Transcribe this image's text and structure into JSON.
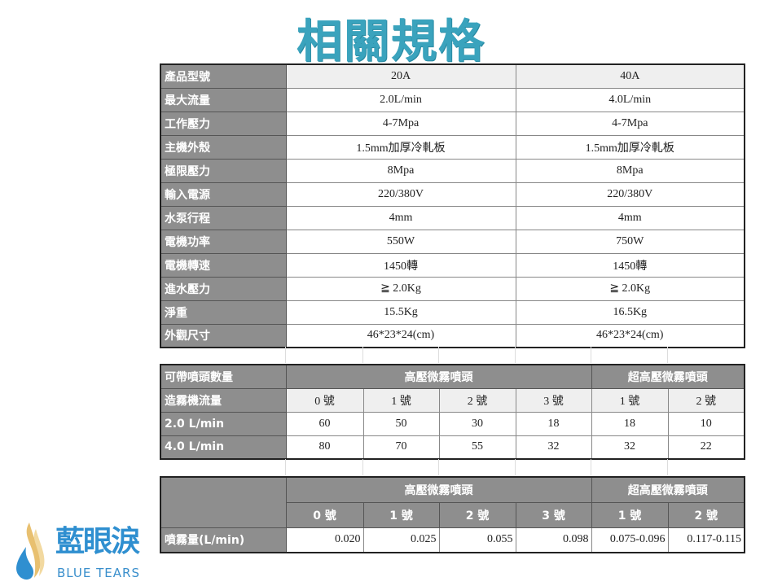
{
  "title": "相關規格",
  "spec_table": {
    "header": {
      "label": "產品型號",
      "values": [
        "20A",
        "40A"
      ]
    },
    "rows": [
      {
        "label": "最大流量",
        "values": [
          "2.0L/min",
          "4.0L/min"
        ]
      },
      {
        "label": "工作壓力",
        "values": [
          "4-7Mpa",
          "4-7Mpa"
        ]
      },
      {
        "label": "主機外殼",
        "values": [
          "1.5mm加厚冷軋板",
          "1.5mm加厚冷軋板"
        ]
      },
      {
        "label": "極限壓力",
        "values": [
          "8Mpa",
          "8Mpa"
        ]
      },
      {
        "label": "輸入電源",
        "values": [
          "220/380V",
          "220/380V"
        ]
      },
      {
        "label": "水泵行程",
        "values": [
          "4mm",
          "4mm"
        ]
      },
      {
        "label": "電機功率",
        "values": [
          "550W",
          "750W"
        ]
      },
      {
        "label": "電機轉速",
        "values": [
          "1450轉",
          "1450轉"
        ]
      },
      {
        "label": "進水壓力",
        "values": [
          "≧ 2.0Kg",
          "≧ 2.0Kg"
        ]
      },
      {
        "label": "淨重",
        "values": [
          "15.5Kg",
          "16.5Kg"
        ]
      },
      {
        "label": "外觀尺寸",
        "values": [
          "46*23*24(cm)",
          "46*23*24(cm)"
        ]
      }
    ]
  },
  "nozzle_table": {
    "label": "可帶噴頭數量",
    "group1": "高壓微霧噴頭",
    "group2": "超高壓微霧噴頭",
    "sub_label": "造霧機流量",
    "nozzles": [
      "0 號",
      "1 號",
      "2 號",
      "3 號",
      "1 號",
      "2 號"
    ],
    "rows": [
      {
        "label": "2.0 L/min",
        "values": [
          "60",
          "50",
          "30",
          "18",
          "18",
          "10"
        ]
      },
      {
        "label": "4.0 L/min",
        "values": [
          "80",
          "70",
          "55",
          "32",
          "32",
          "22"
        ]
      }
    ]
  },
  "spray_table": {
    "group1": "高壓微霧噴頭",
    "group2": "超高壓微霧噴頭",
    "nozzles": [
      "0 號",
      "1 號",
      "2 號",
      "3 號",
      "1 號",
      "2 號"
    ],
    "row": {
      "label": "噴霧量(L/min)",
      "values": [
        "0.020",
        "0.025",
        "0.055",
        "0.098",
        "0.075-0.096",
        "0.117-0.115"
      ]
    }
  },
  "logo": {
    "cn": "藍眼淚",
    "en": "BLUE TEARS"
  }
}
